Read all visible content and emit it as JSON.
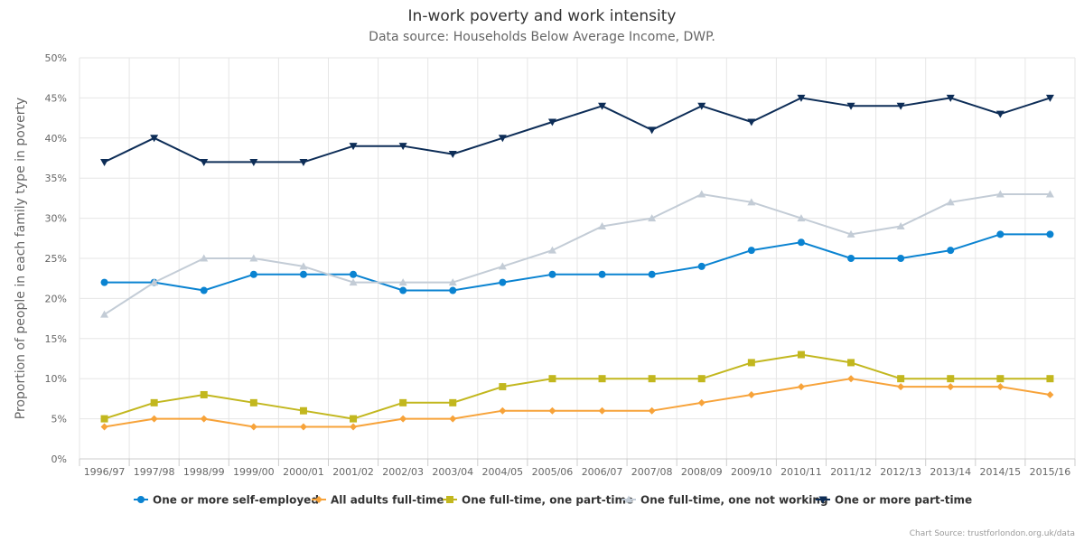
{
  "chart_data": {
    "type": "line",
    "title": "In-work poverty and work intensity",
    "subtitle": "Data source: Households Below Average Income, DWP.",
    "xlabel": "",
    "ylabel": "Proportion of people in each family type in poverty",
    "ylim": [
      0,
      50
    ],
    "yticks": [
      "0%",
      "5%",
      "10%",
      "15%",
      "20%",
      "25%",
      "30%",
      "35%",
      "40%",
      "45%",
      "50%"
    ],
    "categories": [
      "1996/97",
      "1997/98",
      "1998/99",
      "1999/00",
      "2000/01",
      "2001/02",
      "2002/03",
      "2003/04",
      "2004/05",
      "2005/06",
      "2006/07",
      "2007/08",
      "2008/09",
      "2009/10",
      "2010/11",
      "2011/12",
      "2012/13",
      "2013/14",
      "2014/15",
      "2015/16"
    ],
    "grid": true,
    "legend_position": "bottom",
    "series": [
      {
        "name": "One or more self-employed",
        "color": "#0a83d1",
        "marker": "circle",
        "values": [
          22,
          22,
          21,
          23,
          23,
          23,
          21,
          21,
          22,
          23,
          23,
          23,
          24,
          26,
          27,
          25,
          25,
          26,
          28,
          28
        ]
      },
      {
        "name": "All adults full-time",
        "color": "#f7a33a",
        "marker": "diamond",
        "values": [
          4,
          5,
          5,
          4,
          4,
          4,
          5,
          5,
          6,
          6,
          6,
          6,
          7,
          8,
          9,
          10,
          9,
          9,
          9,
          8
        ]
      },
      {
        "name": "One full-time, one part-time",
        "color": "#c2b71e",
        "marker": "square",
        "values": [
          5,
          7,
          8,
          7,
          6,
          5,
          7,
          7,
          9,
          10,
          10,
          10,
          10,
          12,
          13,
          12,
          10,
          10,
          10,
          10
        ]
      },
      {
        "name": "One full-time, one not working",
        "color": "#c3ccd6",
        "marker": "triangle",
        "values": [
          18,
          22,
          25,
          25,
          24,
          22,
          22,
          22,
          24,
          26,
          29,
          30,
          33,
          32,
          30,
          28,
          29,
          32,
          33,
          33
        ]
      },
      {
        "name": "One or more part-time",
        "color": "#0d2d57",
        "marker": "triangle-down",
        "values": [
          37,
          40,
          37,
          37,
          37,
          39,
          39,
          38,
          40,
          42,
          44,
          41,
          44,
          42,
          45,
          44,
          44,
          45,
          43,
          45
        ]
      }
    ]
  },
  "footer": {
    "source": "Chart Source: trustforlondon.org.uk/data"
  }
}
